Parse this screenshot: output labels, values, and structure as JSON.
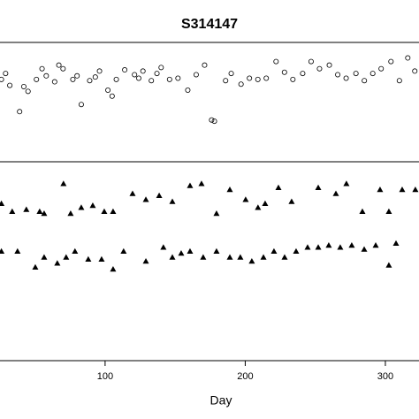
{
  "chart_data": [
    {
      "type": "scatter",
      "title": "S314147",
      "marker": "circle",
      "color": "#000000",
      "x": [
        26,
        29,
        32,
        39,
        42,
        45,
        51,
        55,
        58,
        64,
        67,
        70,
        77,
        80,
        83,
        89,
        93,
        96,
        102,
        105,
        108,
        114,
        121,
        124,
        127,
        133,
        137,
        140,
        146,
        152,
        159,
        165,
        171,
        176,
        178,
        186,
        190,
        197,
        203,
        209,
        215,
        222,
        228,
        234,
        241,
        247,
        253,
        260,
        266,
        272,
        279,
        285,
        291,
        297,
        304,
        310,
        316,
        321
      ],
      "values": [
        6.9,
        7.4,
        6.4,
        4.2,
        6.3,
        5.9,
        6.9,
        7.8,
        7.2,
        6.7,
        8.1,
        7.8,
        6.9,
        7.2,
        4.8,
        6.8,
        7.1,
        7.6,
        6.0,
        5.5,
        6.9,
        7.7,
        7.3,
        7.0,
        7.6,
        6.8,
        7.4,
        7.9,
        6.9,
        7.0,
        6.0,
        7.3,
        8.1,
        3.5,
        3.4,
        6.8,
        7.4,
        6.5,
        7.0,
        6.9,
        7.0,
        8.4,
        7.5,
        6.9,
        7.4,
        8.4,
        7.8,
        8.1,
        7.3,
        7.0,
        7.4,
        6.8,
        7.4,
        7.8,
        8.4,
        6.8,
        8.7,
        7.6
      ],
      "xlim": [
        25,
        324
      ],
      "ylim": [
        0,
        10
      ]
    },
    {
      "type": "scatter",
      "marker": "triangle",
      "color": "#000000",
      "x_label": "Day",
      "x": [
        26,
        33.7,
        43.8,
        53.3,
        56.5,
        70.3,
        75.4,
        83.0,
        91.2,
        99.4,
        105.7,
        119.6,
        129.1,
        138.6,
        148.0,
        160.6,
        168.8,
        179.5,
        189.0,
        200.3,
        209.1,
        214.2,
        223.7,
        233.1,
        252.1,
        264.7,
        272.2,
        283.6,
        296.2,
        302.5,
        312.0,
        321.4,
        26,
        37.5,
        50.2,
        56.5,
        65.9,
        72.2,
        78.5,
        88.0,
        97.5,
        105.7,
        113.2,
        129.1,
        141.6,
        148.0,
        154.3,
        160.6,
        170.0,
        179.5,
        189.0,
        196.5,
        204.7,
        213.0,
        220.5,
        228.1,
        236.3,
        244.5,
        252.1,
        259.6,
        267.8,
        276.0,
        284.9,
        293.1,
        302.5,
        307.6
      ],
      "values": [
        7.9,
        7.5,
        7.6,
        7.5,
        7.4,
        8.9,
        7.4,
        7.7,
        7.8,
        7.5,
        7.5,
        8.4,
        8.1,
        8.3,
        8.0,
        8.8,
        8.9,
        7.4,
        8.6,
        8.1,
        7.7,
        7.9,
        8.7,
        8.0,
        8.7,
        8.4,
        8.9,
        7.5,
        8.6,
        7.5,
        8.6,
        8.6,
        5.5,
        5.5,
        4.7,
        5.2,
        4.9,
        5.2,
        5.5,
        5.1,
        5.1,
        4.6,
        5.5,
        5.0,
        5.7,
        5.2,
        5.4,
        5.5,
        5.2,
        5.5,
        5.2,
        5.2,
        5.0,
        5.2,
        5.5,
        5.2,
        5.5,
        5.7,
        5.7,
        5.8,
        5.7,
        5.8,
        5.6,
        5.8,
        4.8,
        5.9
      ],
      "xlim": [
        25,
        324
      ],
      "ylim": [
        0,
        10
      ],
      "xticks": [
        100,
        200,
        300
      ]
    }
  ]
}
